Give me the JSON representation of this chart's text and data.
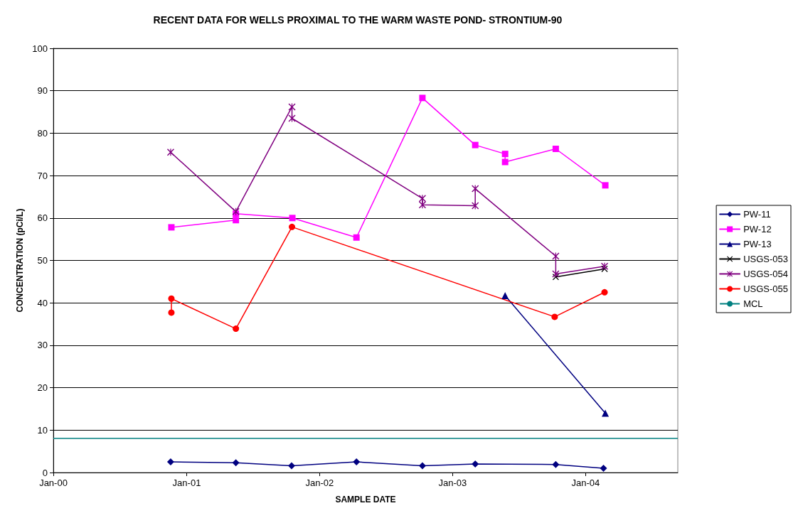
{
  "chart_data": {
    "type": "line",
    "title": "RECENT DATA FOR WELLS PROXIMAL TO THE WARM WASTE POND- STRONTIUM-90",
    "xlabel": "SAMPLE DATE",
    "ylabel": "CONCENTRATION (pCi/L)",
    "xlim": [
      "2000-01-01",
      "2004-09-10"
    ],
    "xticks": [
      {
        "value": "2000-01-01",
        "label": "Jan-00"
      },
      {
        "value": "2001-01-01",
        "label": "Jan-01"
      },
      {
        "value": "2002-01-01",
        "label": "Jan-02"
      },
      {
        "value": "2003-01-01",
        "label": "Jan-03"
      },
      {
        "value": "2004-01-01",
        "label": "Jan-04"
      }
    ],
    "ylim": [
      0,
      100
    ],
    "yticks": [
      0,
      10,
      20,
      30,
      40,
      50,
      60,
      70,
      80,
      90,
      100
    ],
    "grid": "y",
    "legend": "right",
    "series": [
      {
        "name": "PW-11",
        "color": "#000080",
        "marker": "diamond",
        "x": [
          "2000-11-18",
          "2001-05-16",
          "2001-10-16",
          "2002-04-12",
          "2002-10-10",
          "2003-03-04",
          "2003-10-11",
          "2004-02-19"
        ],
        "values": [
          2.5,
          2.3,
          1.6,
          2.5,
          1.6,
          2.0,
          1.9,
          1.0
        ]
      },
      {
        "name": "PW-12",
        "color": "#ff00ff",
        "marker": "square",
        "x": [
          "2000-11-20",
          "2001-05-16",
          "2001-05-16",
          "2001-10-18",
          "2002-04-12",
          "2002-10-10",
          "2003-03-04",
          "2003-05-25",
          "2003-05-25",
          "2003-10-11",
          "2004-02-24"
        ],
        "values": [
          57.8,
          59.5,
          61.0,
          60.0,
          55.4,
          88.3,
          77.2,
          75.1,
          73.2,
          76.3,
          67.7
        ]
      },
      {
        "name": "PW-13",
        "color": "#000080",
        "marker": "triangle",
        "x": [
          "2003-05-25",
          "2004-02-24"
        ],
        "values": [
          41.7,
          14.0
        ]
      },
      {
        "name": "USGS-053",
        "color": "#000000",
        "marker": "cross",
        "x": [
          "2003-10-11",
          "2004-02-22"
        ],
        "values": [
          46.1,
          48.0
        ]
      },
      {
        "name": "USGS-054",
        "color": "#800080",
        "marker": "star",
        "x": [
          "2000-11-18",
          "2001-05-16",
          "2001-10-17",
          "2001-10-17",
          "2002-10-10",
          "2002-10-10",
          "2003-03-04",
          "2003-03-04",
          "2003-10-11",
          "2003-10-11",
          "2004-02-22"
        ],
        "values": [
          75.5,
          61.5,
          86.2,
          83.5,
          64.6,
          63.1,
          62.9,
          66.9,
          51.0,
          46.8,
          48.6
        ]
      },
      {
        "name": "USGS-055",
        "color": "#ff0000",
        "marker": "circle",
        "x": [
          "2000-11-20",
          "2000-11-20",
          "2001-05-16",
          "2001-10-17",
          "2003-10-08",
          "2004-02-22"
        ],
        "values": [
          37.7,
          41.0,
          33.9,
          57.9,
          36.7,
          42.5
        ]
      }
    ],
    "ref_lines": [
      {
        "axis": "y",
        "value": 8,
        "label": "MCL",
        "color": "#008080"
      }
    ]
  }
}
